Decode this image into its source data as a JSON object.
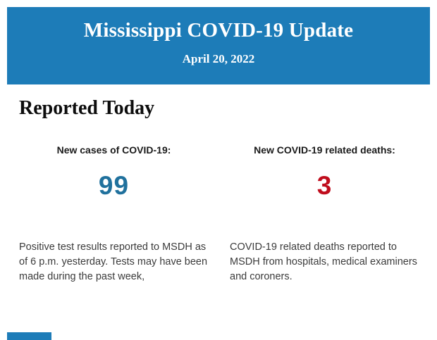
{
  "theme": {
    "header_background": "#1d7cb8",
    "cases_value_color": "#20719d",
    "deaths_value_color": "#c00d1d",
    "body_text_color": "#3b3b3b"
  },
  "header": {
    "title": "Mississippi COVID-19 Update",
    "date": "April 20, 2022"
  },
  "section": {
    "title": "Reported Today"
  },
  "stats": {
    "cases": {
      "label": "New cases of COVID-19:",
      "value": "99",
      "description": "Positive test results reported to MSDH as of 6 p.m. yesterday. Tests may have been made during the past week,"
    },
    "deaths": {
      "label": "New COVID-19 related deaths:",
      "value": "3",
      "description": "COVID-19 related deaths reported to MSDH from hospitals, medical examiners and coroners."
    }
  }
}
